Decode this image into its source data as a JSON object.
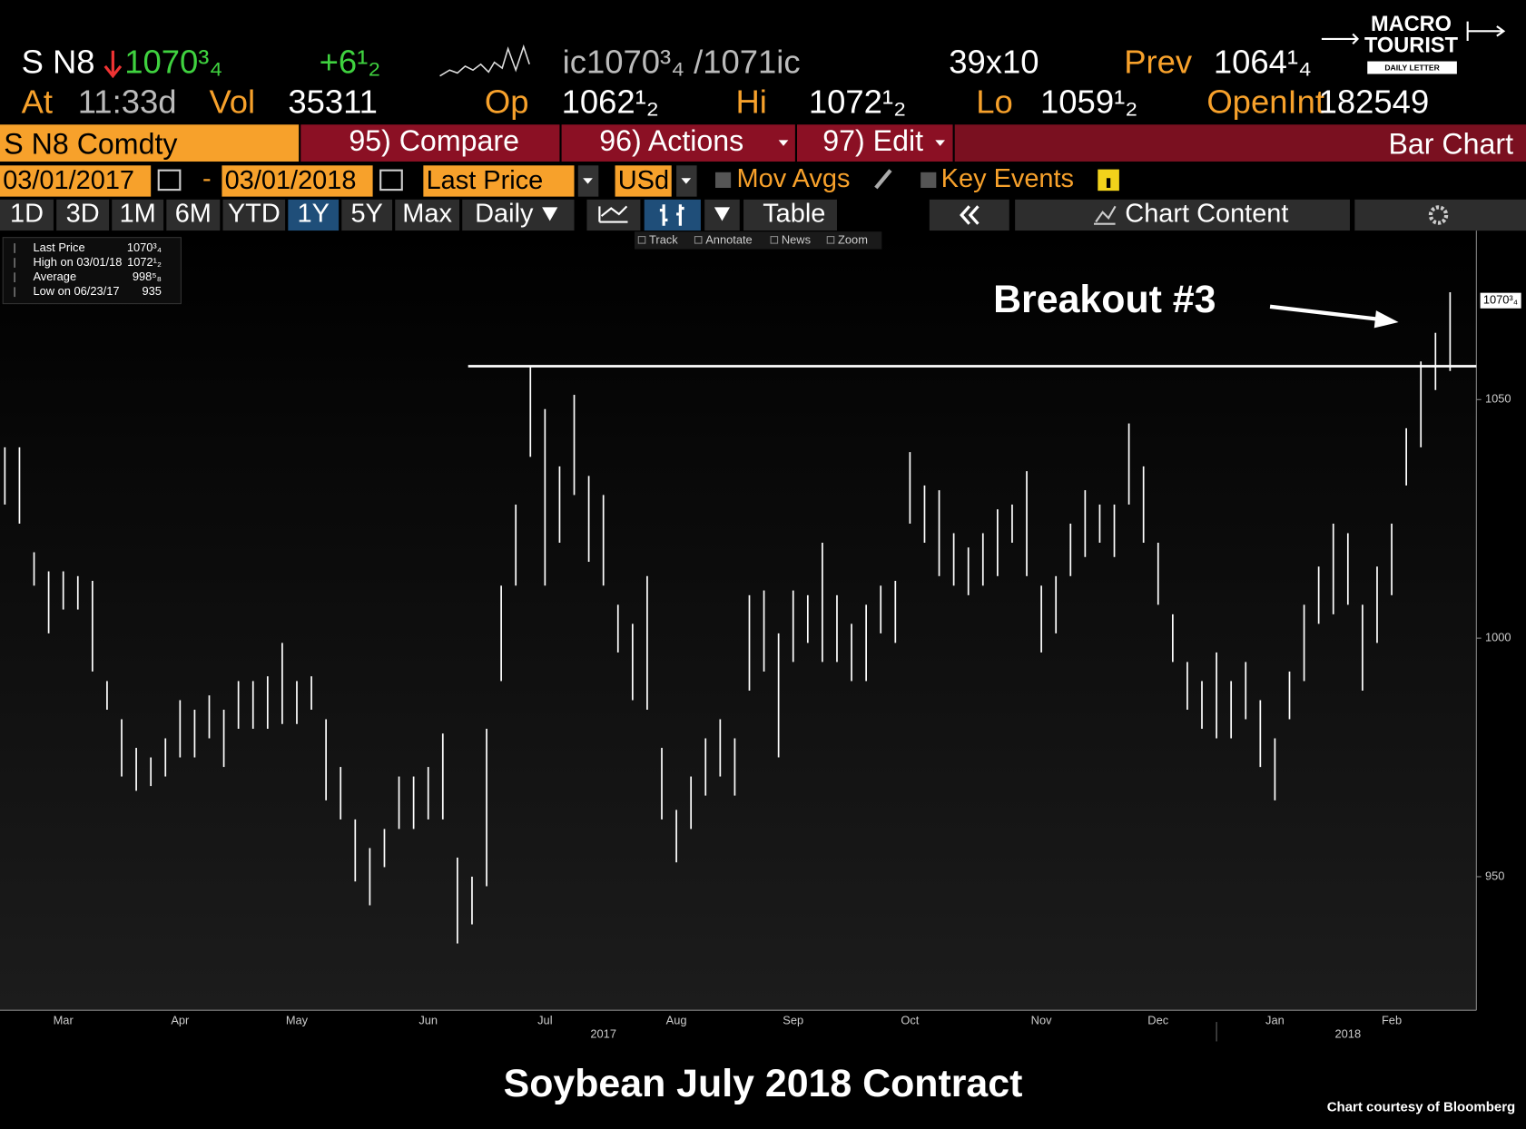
{
  "header": {
    "ticker": "S N8",
    "last": "1070³₄",
    "change": "+6¹₂",
    "bid_ask": "ic1070³₄ /1071ic",
    "size": "39x10",
    "prev_label": "Prev",
    "prev": "1064¹₄",
    "at_label": "At",
    "time": "11:33d",
    "vol_label": "Vol",
    "vol": "35311",
    "open_label": "Op",
    "open": "1062¹₂",
    "high_label": "Hi",
    "high": "1072¹₂",
    "low_label": "Lo",
    "low": "1059¹₂",
    "oi_label": "OpenInt",
    "oi": "182549",
    "logo_line1": "MACRO",
    "logo_line2": "TOURIST",
    "logo_line3": "DAILY LETTER"
  },
  "toolbar": {
    "security": "S N8 Comdty",
    "compare": "95) Compare",
    "actions": "96) Actions",
    "edit": "97) Edit",
    "view": "Bar Chart",
    "start_date": "03/01/2017",
    "dash": "-",
    "end_date": "03/01/2018",
    "field": "Last Price",
    "currency": "USd",
    "mov_avgs": "Mov Avgs",
    "key_events": "Key Events",
    "periods": [
      "1D",
      "3D",
      "1M",
      "6M",
      "YTD",
      "1Y",
      "5Y",
      "Max"
    ],
    "frequency": "Daily",
    "table": "Table",
    "chart_content": "Chart Content",
    "tools": [
      "Track",
      "Annotate",
      "News",
      "Zoom"
    ]
  },
  "chart_data": {
    "type": "ohlc",
    "title": "Soybean July 2018 Contract",
    "source": "Chart courtesy of Bloomberg",
    "annotation": "Breakout #3",
    "color": "#ffffff",
    "resistance": 1057,
    "legend": [
      {
        "name": "Last Price",
        "value": "1070³₄"
      },
      {
        "name": "High on 03/01/18",
        "value": "1072¹₂"
      },
      {
        "name": "Average",
        "value": "998⁵₈"
      },
      {
        "name": "Low on 06/23/17",
        "value": "935"
      }
    ],
    "last_price": {
      "value": 1070.75,
      "label": "1070³₄"
    },
    "ylim": [
      922,
      1085
    ],
    "yticks": [
      950,
      1000,
      1050
    ],
    "categories": [
      null,
      null,
      null,
      null,
      "Mar",
      null,
      null,
      null,
      null,
      null,
      null,
      null,
      "Apr",
      null,
      null,
      null,
      null,
      null,
      null,
      null,
      "May",
      null,
      null,
      null,
      null,
      null,
      null,
      null,
      null,
      "Jun",
      null,
      null,
      null,
      null,
      null,
      null,
      null,
      "Jul",
      null,
      null,
      null,
      null,
      null,
      null,
      null,
      null,
      "Aug",
      null,
      null,
      null,
      null,
      null,
      null,
      null,
      "Sep",
      null,
      null,
      null,
      null,
      null,
      null,
      null,
      "Oct",
      null,
      null,
      null,
      null,
      null,
      null,
      null,
      null,
      "Nov",
      null,
      null,
      null,
      null,
      null,
      null,
      null,
      "Dec",
      null,
      null,
      null,
      null,
      null,
      null,
      null,
      "Jan",
      null,
      null,
      null,
      null,
      null,
      null,
      null,
      "Feb",
      null,
      null,
      null,
      null
    ],
    "category_groups": [
      null,
      null,
      null,
      null,
      null,
      null,
      null,
      null,
      null,
      null,
      null,
      null,
      null,
      null,
      null,
      null,
      null,
      null,
      null,
      null,
      null,
      null,
      null,
      null,
      null,
      null,
      null,
      null,
      null,
      null,
      null,
      null,
      null,
      null,
      null,
      null,
      null,
      null,
      null,
      null,
      null,
      "2017",
      null,
      null,
      null,
      null,
      null,
      null,
      null,
      null,
      null,
      null,
      null,
      null,
      null,
      null,
      null,
      null,
      null,
      null,
      null,
      null,
      null,
      null,
      null,
      null,
      null,
      null,
      null,
      null,
      null,
      null,
      null,
      null,
      null,
      null,
      null,
      null,
      null,
      null,
      null,
      null,
      null,
      null,
      null,
      null,
      null,
      null,
      null,
      null,
      null,
      null,
      "2018",
      null,
      null,
      null,
      null,
      null,
      null,
      null
    ],
    "high": [
      1040,
      1040,
      1018,
      1014,
      1014,
      1013,
      1012,
      991,
      983,
      977,
      975,
      979,
      987,
      985,
      988,
      985,
      991,
      991,
      992,
      999,
      991,
      992,
      983,
      973,
      962,
      956,
      960,
      971,
      971,
      973,
      980,
      954,
      950,
      981,
      1011,
      1028,
      1057,
      1048,
      1036,
      1051,
      1034,
      1030,
      1007,
      1003,
      1013,
      977,
      964,
      971,
      979,
      983,
      979,
      1009,
      1010,
      1001,
      1010,
      1009,
      1020,
      1009,
      1003,
      1007,
      1011,
      1012,
      1039,
      1032,
      1031,
      1022,
      1019,
      1022,
      1027,
      1028,
      1035,
      1011,
      1013,
      1024,
      1031,
      1028,
      1028,
      1045,
      1036,
      1020,
      1005,
      995,
      991,
      997,
      991,
      995,
      987,
      979,
      993,
      1007,
      1015,
      1024,
      1022,
      1007,
      1015,
      1024,
      1044,
      1058,
      1064,
      1072.5
    ],
    "low": [
      1028,
      1024,
      1011,
      1001,
      1006,
      1006,
      993,
      985,
      971,
      968,
      969,
      971,
      975,
      975,
      979,
      973,
      981,
      981,
      981,
      982,
      982,
      985,
      966,
      962,
      949,
      944,
      952,
      960,
      960,
      962,
      962,
      936,
      940,
      948,
      991,
      1011,
      1038,
      1011,
      1020,
      1030,
      1016,
      1011,
      997,
      987,
      985,
      962,
      953,
      960,
      967,
      971,
      967,
      989,
      993,
      975,
      995,
      999,
      995,
      995,
      991,
      991,
      1001,
      999,
      1024,
      1020,
      1013,
      1011,
      1009,
      1011,
      1013,
      1020,
      1013,
      997,
      1001,
      1013,
      1017,
      1020,
      1017,
      1028,
      1020,
      1007,
      995,
      985,
      981,
      979,
      979,
      983,
      973,
      966,
      983,
      991,
      1003,
      1005,
      1007,
      989,
      999,
      1009,
      1032,
      1040,
      1052,
      1056
    ]
  }
}
